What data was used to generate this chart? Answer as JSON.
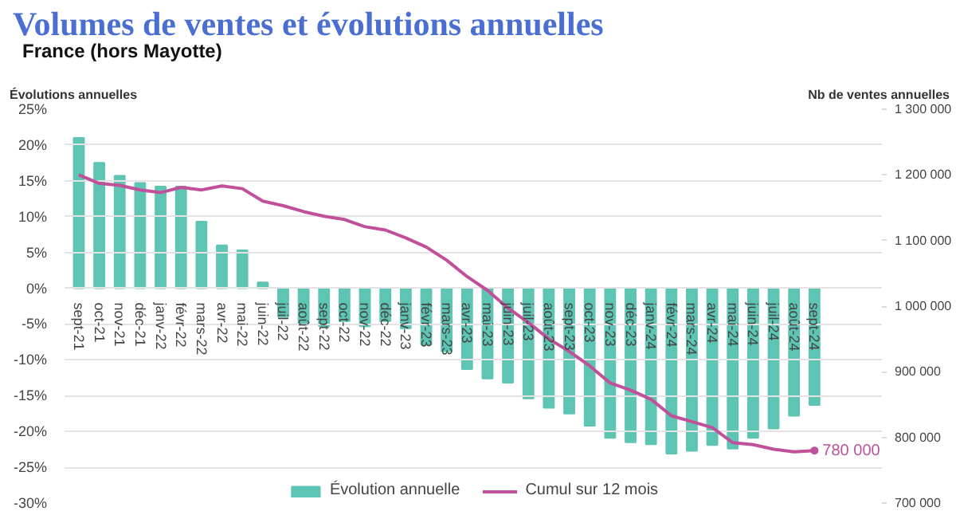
{
  "chart_data": {
    "type": "bar",
    "title": "Volumes de ventes et évolutions annuelles",
    "subtitle": "France (hors Mayotte)",
    "ylabel": "Évolutions annuelles",
    "y2label": "Nb de ventes annuelles",
    "categories": [
      "sept-21",
      "oct-21",
      "nov-21",
      "déc-21",
      "janv-22",
      "févr-22",
      "mars-22",
      "avr-22",
      "mai-22",
      "juin-22",
      "juil-22",
      "août-22",
      "sept-22",
      "oct-22",
      "nov-22",
      "déc-22",
      "janv-23",
      "févr-23",
      "mars-23",
      "avr-23",
      "mai-23",
      "juin-23",
      "juil-23",
      "août-23",
      "sept-23",
      "oct-23",
      "nov-23",
      "déc-23",
      "janv-24",
      "févr-24",
      "mars-24",
      "avr-24",
      "mai-24",
      "juin-24",
      "juil-24",
      "août-24",
      "sept-24"
    ],
    "series": [
      {
        "name": "Évolution annuelle",
        "color": "#5ec4b3",
        "values": [
          21.0,
          17.5,
          15.7,
          14.7,
          14.2,
          14.2,
          9.3,
          6.0,
          5.3,
          0.8,
          -4.0,
          -5.1,
          -5.3,
          -4.6,
          -5.3,
          -4.6,
          -5.6,
          -7.9,
          -8.8,
          -11.3,
          -12.6,
          -13.2,
          -15.4,
          -16.7,
          -17.5,
          -19.2,
          -20.9,
          -21.5,
          -21.8,
          -23.1,
          -22.7,
          -21.9,
          -22.4,
          -20.9,
          -19.6,
          -17.8,
          -16.3
        ]
      },
      {
        "name": "Cumul sur 12 mois",
        "type": "line",
        "axis": "y2",
        "color": "#c0509a",
        "values": [
          1200000,
          1187000,
          1184000,
          1177000,
          1173000,
          1181000,
          1177000,
          1183000,
          1179000,
          1160000,
          1153000,
          1144000,
          1137000,
          1132000,
          1121000,
          1116000,
          1104000,
          1090000,
          1070000,
          1045000,
          1024000,
          997000,
          975000,
          950000,
          931000,
          909000,
          883000,
          872000,
          858000,
          833000,
          824000,
          815000,
          792000,
          789000,
          782000,
          778000,
          780000
        ]
      }
    ],
    "ylim": [
      -30,
      25
    ],
    "yticks": [
      {
        "value": -30,
        "label": "-30%"
      },
      {
        "value": -25,
        "label": "-25%"
      },
      {
        "value": -20,
        "label": "-20%"
      },
      {
        "value": -15,
        "label": "-15%"
      },
      {
        "value": -10,
        "label": "-10%"
      },
      {
        "value": -5,
        "label": "-5%"
      },
      {
        "value": 0,
        "label": "0%"
      },
      {
        "value": 5,
        "label": "5%"
      },
      {
        "value": 10,
        "label": "10%"
      },
      {
        "value": 15,
        "label": "15%"
      },
      {
        "value": 20,
        "label": "20%"
      },
      {
        "value": 25,
        "label": "25%"
      }
    ],
    "y2lim": [
      700000,
      1300000
    ],
    "y2ticks": [
      {
        "value": 700000,
        "label": "700 000"
      },
      {
        "value": 800000,
        "label": "800 000"
      },
      {
        "value": 900000,
        "label": "900 000"
      },
      {
        "value": 1000000,
        "label": "1 000 000"
      },
      {
        "value": 1100000,
        "label": "1 100 000"
      },
      {
        "value": 1200000,
        "label": "1 200 000"
      },
      {
        "value": 1300000,
        "label": "1 300 000"
      }
    ],
    "annotations": [
      "780 000"
    ],
    "grid": "y",
    "legend": "bottom",
    "marker": "none",
    "line_style": "solid"
  }
}
